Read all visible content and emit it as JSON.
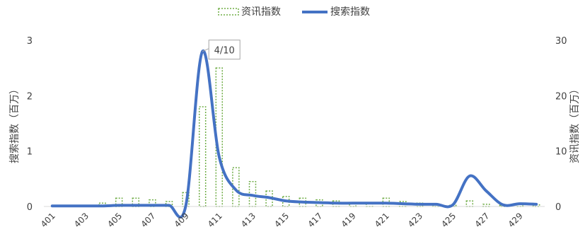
{
  "chart_data": {
    "type": "bar+line",
    "legend": [
      {
        "name": "资讯指数",
        "style": "bar-dotted",
        "color": "#70ad47"
      },
      {
        "name": "搜索指数",
        "style": "line",
        "color": "#4472c4"
      }
    ],
    "legend_position": "top",
    "y_left_label": "搜索指数（百万）",
    "y_right_label": "资讯指数（百万）",
    "y_left_lim": [
      0,
      3
    ],
    "y_left_ticks": [
      "0",
      "1",
      "2",
      "3"
    ],
    "y_right_lim": [
      0,
      30
    ],
    "y_right_ticks": [
      "0",
      "10",
      "20",
      "30"
    ],
    "grid": false,
    "x_tick_labels": [
      "401",
      "403",
      "405",
      "407",
      "409",
      "411",
      "413",
      "415",
      "417",
      "419",
      "421",
      "423",
      "425",
      "427",
      "429"
    ],
    "days": [
      1,
      2,
      3,
      4,
      5,
      6,
      7,
      8,
      9,
      10,
      11,
      12,
      13,
      14,
      15,
      16,
      17,
      18,
      19,
      20,
      21,
      22,
      23,
      24,
      25,
      26,
      27,
      28,
      29,
      30
    ],
    "series": [
      {
        "name": "资讯指数",
        "axis": "right",
        "values": [
          0,
          0,
          0.1,
          0.6,
          1.5,
          1.5,
          1.2,
          0.9,
          2.5,
          18,
          25,
          7,
          4.5,
          2.8,
          1.8,
          1.5,
          1.2,
          1.0,
          0.6,
          0.5,
          1.5,
          0.9,
          0.6,
          0.3,
          0.2,
          1.0,
          0.4,
          0.2,
          0.6,
          0.3
        ]
      },
      {
        "name": "搜索指数",
        "axis": "left",
        "values": [
          0.01,
          0.01,
          0.01,
          0.01,
          0.02,
          0.02,
          0.02,
          0.02,
          0.01,
          2.8,
          0.9,
          0.3,
          0.2,
          0.16,
          0.1,
          0.08,
          0.07,
          0.06,
          0.06,
          0.06,
          0.06,
          0.05,
          0.04,
          0.04,
          0.03,
          0.55,
          0.28,
          0.03,
          0.05,
          0.04
        ]
      }
    ],
    "annotation": {
      "text": "4/10",
      "series": "搜索指数",
      "day": 10
    }
  }
}
